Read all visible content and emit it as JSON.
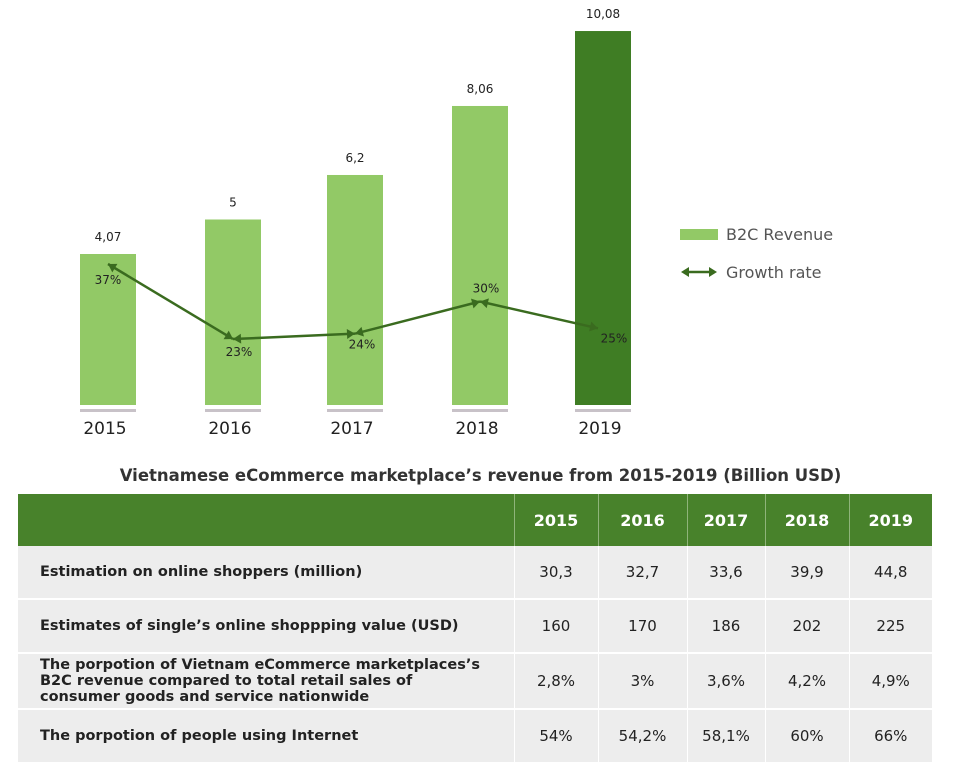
{
  "chart_data": {
    "type": "bar",
    "categories": [
      "2015",
      "2016",
      "2017",
      "2018",
      "2019"
    ],
    "series": [
      {
        "name": "B2C Revenue",
        "values": [
          4.07,
          5,
          6.2,
          8.06,
          10.08
        ],
        "value_labels": [
          "4,07",
          "5",
          "6,2",
          "8,06",
          "10,08"
        ]
      },
      {
        "name": "Growth rate",
        "type": "line",
        "values": [
          37,
          23,
          24,
          30,
          25
        ],
        "value_labels": [
          "37%",
          "23%",
          "24%",
          "30%",
          "25%"
        ]
      }
    ],
    "highlight_index": 4,
    "colors": {
      "bar": "#92c966",
      "bar_highlight": "#3f7d24",
      "line": "#3a6b1f",
      "baseline": "#c8c2c8"
    },
    "legend_position": "right",
    "title": "Vietnamese eCommerce marketplace’s revenue from 2015-2019 (Billion USD)"
  },
  "table": {
    "headers": [
      "",
      "2015",
      "2016",
      "2017",
      "2018",
      "2019"
    ],
    "rows": [
      {
        "label": "Estimation on online shoppers (million)",
        "values": [
          "30,3",
          "32,7",
          "33,6",
          "39,9",
          "44,8"
        ]
      },
      {
        "label": "Estimates of single’s online shoppping value (USD)",
        "values": [
          "160",
          "170",
          "186",
          "202",
          "225"
        ]
      },
      {
        "label": "The porpotion of Vietnam eCommerce marketplaces’s B2C revenue compared to total retail sales of consumer goods and service nationwide",
        "values": [
          "2,8%",
          "3%",
          "3,6%",
          "4,2%",
          "4,9%"
        ]
      },
      {
        "label": "The porpotion of people using Internet",
        "values": [
          "54%",
          "54,2%",
          "58,1%",
          "60%",
          "66%"
        ]
      }
    ]
  }
}
